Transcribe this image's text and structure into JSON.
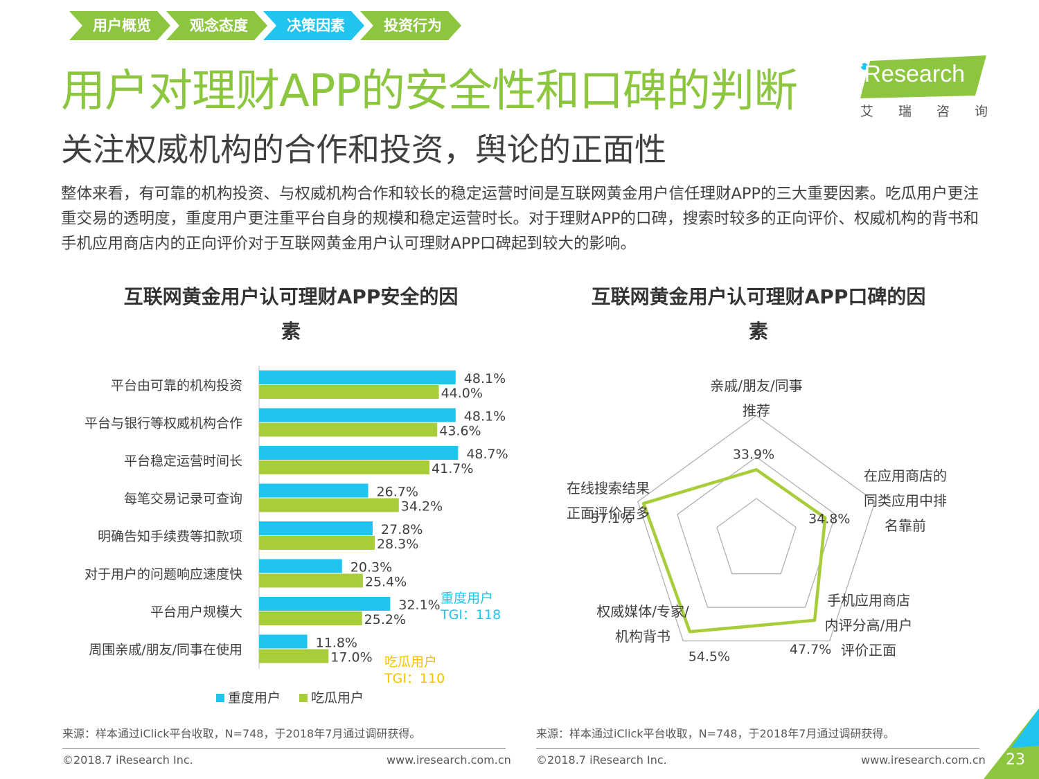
{
  "breadcrumbs": [
    {
      "label": "用户概览",
      "color": "#8cc63f"
    },
    {
      "label": "观念态度",
      "color": "#8cc63f"
    },
    {
      "label": "决策因素",
      "color": "#1fc4ef"
    },
    {
      "label": "投资行为",
      "color": "#8cc63f"
    }
  ],
  "header": {
    "title": "用户对理财APP的安全性和口碑的判断",
    "subtitle": "关注权威机构的合作和投资，舆论的正面性",
    "paragraph": "整体来看，有可靠的机构投资、与权威机构合作和较长的稳定运营时间是互联网黄金用户信任理财APP的三大重要因素。吃瓜用户更注重交易的透明度，重度用户更注重平台自身的规模和稳定运营时长。对于理财APP的口碑，搜索时较多的正向评价、权威机构的背书和手机应用商店内的正向评价对于互联网黄金用户认可理财APP口碑起到较大的影响。"
  },
  "logo": {
    "text": "iResearch",
    "cn": "艾瑞咨询",
    "color": "#8cc63f"
  },
  "chart_data": [
    {
      "type": "bar",
      "orientation": "horizontal",
      "title": "互联网黄金用户认可理财APP安全的因素",
      "categories": [
        "平台由可靠的机构投资",
        "平台与银行等权威机构合作",
        "平台稳定运营时间长",
        "每笔交易记录可查询",
        "明确告知手续费等扣款项",
        "对于用户的问题响应速度快",
        "平台用户规模大",
        "周围亲戚/朋友/同事在使用"
      ],
      "series": [
        {
          "name": "重度用户",
          "values": [
            48.1,
            48.1,
            48.7,
            26.7,
            27.8,
            20.3,
            32.1,
            11.8
          ],
          "color": "#1fc4ef"
        },
        {
          "name": "吃瓜用户",
          "values": [
            44.0,
            43.6,
            41.7,
            34.2,
            28.3,
            25.4,
            25.2,
            17.0
          ],
          "color": "#a8cd3a"
        }
      ],
      "value_suffix": "%",
      "annotations": [
        {
          "series": "重度用户",
          "line1": "重度用户",
          "line2": "TGI：118",
          "color": "#1fc4ef"
        },
        {
          "series": "吃瓜用户",
          "line1": "吃瓜用户",
          "line2": "TGI：110",
          "color": "#f5c400"
        }
      ],
      "legend": "bottom"
    },
    {
      "type": "radar",
      "title": "互联网黄金用户认可理财APP口碑的因素",
      "axes": [
        {
          "label_lines": [
            "亲戚/朋友/同事",
            "推荐"
          ],
          "value": 33.9
        },
        {
          "label_lines": [
            "在应用商店的",
            "同类应用中排",
            "名靠前"
          ],
          "value": 34.8
        },
        {
          "label_lines": [
            "手机应用商店",
            "内评分高/用户",
            "评价正面"
          ],
          "value": 47.7
        },
        {
          "label_lines": [
            "权威媒体/专家/",
            "机构背书"
          ],
          "value": 54.5
        },
        {
          "label_lines": [
            "在线搜索结果",
            "正面评价居多"
          ],
          "value": 57.1
        }
      ],
      "value_suffix": "%",
      "rmax": 60,
      "series_color": "#a8cd3a"
    }
  ],
  "footer": {
    "source": "来源：样本通过iClick平台收取，N=748，于2018年7月通过调研获得。",
    "copyright": "©2018.7 iResearch Inc.",
    "website": "www.iresearch.com.cn",
    "page": "23"
  }
}
